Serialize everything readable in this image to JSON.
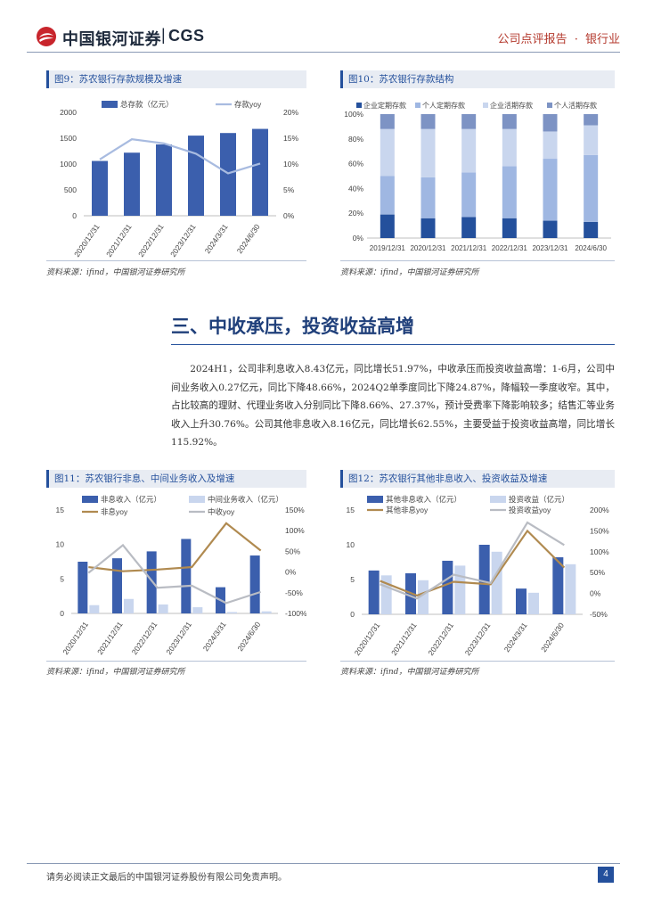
{
  "header": {
    "logo_cn": "中国银河证券",
    "logo_en": "CGS",
    "report_type": "公司点评报告",
    "dot": "·",
    "industry": "银行业"
  },
  "colors": {
    "brand_blue": "#24509c",
    "bar_blue": "#3b5fad",
    "light_blue": "#c9d6ee",
    "mid_blue": "#9fb7e2",
    "gray_blue": "#7d93c4",
    "gold": "#b08a50",
    "gray": "#b9bcc3",
    "yoy_line": "#a8bbe0"
  },
  "fig9": {
    "title": "图9：苏农银行存款规模及增速",
    "source": "资料来源：ifind，中国银河证券研究所"
  },
  "fig10": {
    "title": "图10：苏农银行存款结构",
    "source": "资料来源：ifind，中国银河证券研究所"
  },
  "section": {
    "title": "三、中收承压，投资收益高增"
  },
  "paragraph": "2024H1，公司非利息收入8.43亿元，同比增长51.97%，中收承压而投资收益高增：1-6月，公司中间业务收入0.27亿元，同比下降48.66%，2024Q2单季度同比下降24.87%，降幅较一季度收窄。其中，占比较高的理财、代理业务收入分别同比下降8.66%、27.37%，预计受费率下降影响较多；结售汇等业务收入上升30.76%。公司其他非息收入8.16亿元，同比增长62.55%，主要受益于投资收益高增，同比增长115.92%。",
  "fig11": {
    "title": "图11：苏农银行非息、中间业务收入及增速",
    "source": "资料来源：ifind，中国银河证券研究所"
  },
  "fig12": {
    "title": "图12：苏农银行其他非息收入、投资收益及增速",
    "source": "资料来源：ifind，中国银河证券研究所"
  },
  "footer": {
    "disclaimer": "请务必阅读正文最后的中国银河证券股份有限公司免责声明。",
    "page": "4"
  },
  "chart_data": [
    {
      "id": "fig9",
      "type": "bar",
      "categories": [
        "2020/12/31",
        "2021/12/31",
        "2022/12/31",
        "2023/12/31",
        "2024/3/31",
        "2024/6/30"
      ],
      "series": [
        {
          "name": "总存款（亿元）",
          "axis": "left",
          "kind": "bar",
          "values": [
            1060,
            1220,
            1380,
            1550,
            1600,
            1680
          ]
        },
        {
          "name": "存款yoy",
          "axis": "right",
          "kind": "line",
          "values": [
            10.9,
            14.8,
            14.0,
            12.0,
            8.2,
            10.1
          ]
        }
      ],
      "y_left": {
        "min": 0,
        "max": 2000,
        "ticks": [
          "0",
          "500",
          "1000",
          "1500",
          "2000"
        ]
      },
      "y_right": {
        "min": 0,
        "max": 20,
        "ticks": [
          "0%",
          "5%",
          "10%",
          "15%",
          "20%"
        ]
      },
      "legend": "top"
    },
    {
      "id": "fig10",
      "type": "bar",
      "stacked": true,
      "categories": [
        "2019/12/31",
        "2020/12/31",
        "2021/12/31",
        "2022/12/31",
        "2023/12/31",
        "2024/6/30"
      ],
      "series": [
        {
          "name": "企业定期存款",
          "values": [
            19,
            16,
            17,
            16,
            14,
            13
          ]
        },
        {
          "name": "个人定期存款",
          "values": [
            31,
            33,
            36,
            42,
            50,
            54
          ]
        },
        {
          "name": "企业活期存款",
          "values": [
            38,
            39,
            35,
            30,
            22,
            24
          ]
        },
        {
          "name": "个人活期存款",
          "values": [
            12,
            12,
            12,
            12,
            14,
            9
          ]
        }
      ],
      "y": {
        "min": 0,
        "max": 100,
        "ticks": [
          "0%",
          "20%",
          "40%",
          "60%",
          "80%",
          "100%"
        ]
      },
      "legend": "top"
    },
    {
      "id": "fig11",
      "type": "bar",
      "categories": [
        "2020/12/31",
        "2021/12/31",
        "2022/12/31",
        "2023/12/31",
        "2024/3/31",
        "2024/6/30"
      ],
      "series": [
        {
          "name": "非息收入（亿元）",
          "axis": "left",
          "kind": "bar",
          "values": [
            7.5,
            8.0,
            9.0,
            10.8,
            3.8,
            8.4
          ]
        },
        {
          "name": "中间业务收入（亿元）",
          "axis": "left",
          "kind": "bar",
          "values": [
            1.2,
            2.1,
            1.3,
            0.9,
            0.2,
            0.3
          ]
        },
        {
          "name": "非息yoy",
          "axis": "right",
          "kind": "line",
          "values": [
            12,
            2,
            6,
            12,
            118,
            52
          ]
        },
        {
          "name": "中收yoy",
          "axis": "right",
          "kind": "line",
          "values": [
            -2,
            65,
            -38,
            -33,
            -75,
            -48
          ]
        }
      ],
      "y_left": {
        "min": 0,
        "max": 15,
        "ticks": [
          "0",
          "5",
          "10",
          "15"
        ]
      },
      "y_right": {
        "min": -100,
        "max": 150,
        "ticks": [
          "-100%",
          "-50%",
          "0%",
          "50%",
          "100%",
          "150%"
        ]
      },
      "legend": "top"
    },
    {
      "id": "fig12",
      "type": "bar",
      "categories": [
        "2020/12/31",
        "2021/12/31",
        "2022/12/31",
        "2023/12/31",
        "2024/3/31",
        "2024/6/30"
      ],
      "series": [
        {
          "name": "其他非息收入（亿元）",
          "axis": "left",
          "kind": "bar",
          "values": [
            6.3,
            5.9,
            7.7,
            10.0,
            3.7,
            8.2
          ]
        },
        {
          "name": "投资收益（亿元）",
          "axis": "left",
          "kind": "bar",
          "values": [
            5.6,
            4.9,
            7.0,
            9.0,
            3.1,
            7.2
          ]
        },
        {
          "name": "其他非息yoy",
          "axis": "right",
          "kind": "line",
          "values": [
            30,
            -5,
            28,
            22,
            150,
            62
          ]
        },
        {
          "name": "投资收益yoy",
          "axis": "right",
          "kind": "line",
          "values": [
            22,
            -12,
            45,
            25,
            170,
            116
          ]
        }
      ],
      "y_left": {
        "min": 0,
        "max": 15,
        "ticks": [
          "0",
          "5",
          "10",
          "15"
        ]
      },
      "y_right": {
        "min": -50,
        "max": 200,
        "ticks": [
          "-50%",
          "0%",
          "50%",
          "100%",
          "150%",
          "200%"
        ]
      },
      "legend": "top"
    }
  ]
}
